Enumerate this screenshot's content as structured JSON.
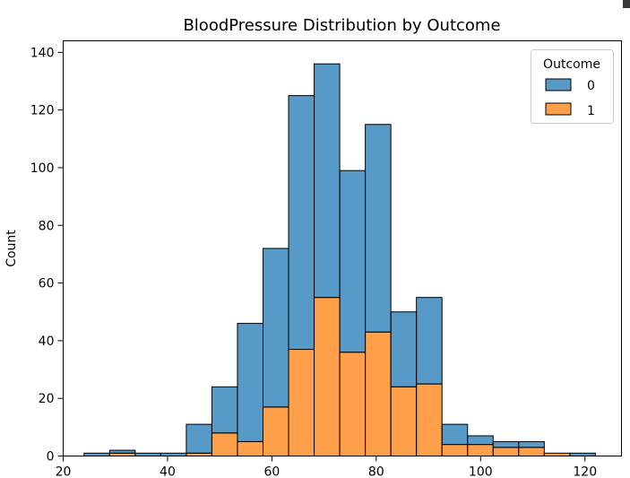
{
  "chart_data": {
    "type": "bar",
    "title": "BloodPressure Distribution by Outcome",
    "xlabel": "",
    "ylabel": "Count",
    "xlim": [
      20,
      127
    ],
    "ylim": [
      0,
      144
    ],
    "xticks": [
      20,
      40,
      60,
      80,
      100,
      120
    ],
    "yticks": [
      0,
      20,
      40,
      60,
      80,
      100,
      120,
      140
    ],
    "grid": false,
    "stacked": true,
    "legend": {
      "title": "Outcome",
      "placement": "top-right",
      "entries": [
        "0",
        "1"
      ]
    },
    "bin_edges": [
      24,
      28.9,
      33.8,
      38.7,
      43.6,
      48.5,
      53.4,
      58.3,
      63.2,
      68.1,
      73.0,
      77.9,
      82.8,
      87.7,
      92.6,
      97.5,
      102.4,
      107.3,
      112.2,
      117.1,
      122
    ],
    "series": [
      {
        "name": "0",
        "color": "#1f77b4",
        "values": [
          1,
          1,
          1,
          1,
          10,
          16,
          41,
          55,
          88,
          81,
          63,
          72,
          26,
          30,
          7,
          3,
          2,
          2,
          0,
          1
        ]
      },
      {
        "name": "1",
        "color": "#ff7f0e",
        "values": [
          0,
          1,
          0,
          0,
          1,
          8,
          5,
          17,
          37,
          55,
          36,
          43,
          24,
          25,
          4,
          4,
          3,
          3,
          1,
          0
        ]
      }
    ],
    "totals": [
      1,
      2,
      1,
      1,
      11,
      24,
      46,
      72,
      125,
      136,
      99,
      115,
      50,
      55,
      11,
      7,
      5,
      5,
      1,
      1
    ]
  }
}
